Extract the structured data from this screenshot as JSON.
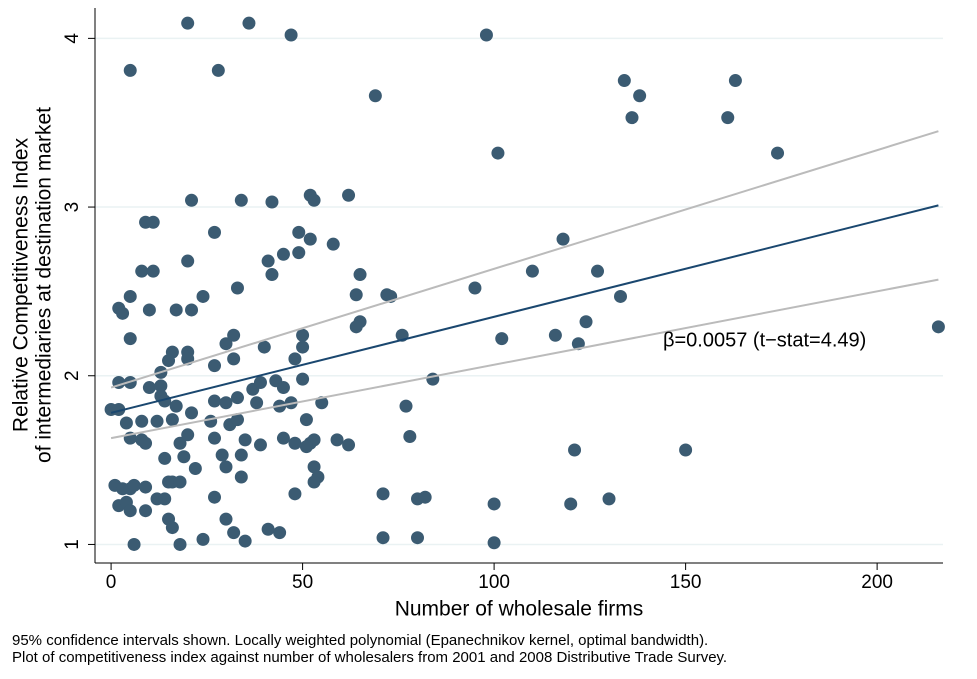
{
  "chart_data": {
    "type": "scatter",
    "xlabel": "Number of wholesale firms",
    "ylabel": [
      "Relative Competitiveness Index",
      "of intermediaries at destination market"
    ],
    "annotation": "β=0.0057 (t−stat=4.49)",
    "notes": [
      "95% confidence intervals shown. Locally weighted polynomial (Epanechnikov kernel, optimal bandwidth).",
      "Plot of competitiveness index against number of wholesalers from 2001 and 2008 Distributive Trade Survey."
    ],
    "xlim": [
      -4.2,
      217.2
    ],
    "ylim": [
      0.89,
      4.18
    ],
    "xticks": [
      0,
      50,
      100,
      150,
      200
    ],
    "yticks": [
      1,
      2,
      3,
      4
    ],
    "grid": true,
    "color": "#3b5b72",
    "x": [
      20,
      36,
      47,
      98,
      5,
      28,
      69,
      134,
      163,
      138,
      136,
      161,
      101,
      174,
      21,
      34,
      42,
      52,
      53,
      62,
      9,
      11,
      27,
      49,
      52,
      58,
      118,
      20,
      41,
      45,
      49,
      8,
      11,
      42,
      65,
      110,
      127,
      33,
      95,
      64,
      72,
      73,
      5,
      24,
      133,
      2,
      3,
      10,
      17,
      21,
      65,
      64,
      124,
      5,
      32,
      50,
      76,
      102,
      116,
      122,
      216,
      16,
      20,
      30,
      40,
      50,
      13,
      15,
      20,
      27,
      32,
      48,
      2,
      5,
      10,
      13,
      37,
      39,
      43,
      45,
      50,
      84,
      0,
      2,
      4,
      8,
      13,
      14,
      17,
      21,
      27,
      30,
      33,
      38,
      44,
      47,
      55,
      77,
      5,
      8,
      9,
      12,
      16,
      18,
      19,
      20,
      26,
      27,
      29,
      31,
      33,
      35,
      39,
      45,
      48,
      51,
      52,
      53,
      59,
      62,
      78,
      14,
      15,
      16,
      18,
      22,
      30,
      34,
      51,
      53,
      54,
      53,
      34,
      121,
      150,
      1,
      3,
      5,
      6,
      9,
      12,
      14,
      2,
      4,
      5,
      9,
      15,
      16,
      27,
      30,
      32,
      41,
      44,
      48,
      71,
      80,
      82,
      100,
      120,
      130,
      6,
      18,
      24,
      35,
      71,
      80,
      100
    ],
    "values": [
      4.09,
      4.09,
      4.02,
      4.02,
      3.81,
      3.81,
      3.66,
      3.75,
      3.75,
      3.66,
      3.53,
      3.53,
      3.32,
      3.32,
      3.04,
      3.04,
      3.03,
      3.07,
      3.04,
      3.07,
      2.91,
      2.91,
      2.85,
      2.85,
      2.81,
      2.78,
      2.81,
      2.68,
      2.68,
      2.72,
      2.73,
      2.62,
      2.62,
      2.6,
      2.6,
      2.62,
      2.62,
      2.52,
      2.52,
      2.48,
      2.48,
      2.47,
      2.47,
      2.47,
      2.47,
      2.4,
      2.37,
      2.39,
      2.39,
      2.39,
      2.32,
      2.29,
      2.32,
      2.22,
      2.24,
      2.24,
      2.24,
      2.22,
      2.24,
      2.19,
      2.29,
      2.14,
      2.14,
      2.19,
      2.17,
      2.17,
      2.02,
      2.09,
      2.1,
      2.06,
      2.1,
      2.1,
      1.96,
      1.96,
      1.93,
      1.94,
      1.92,
      1.96,
      1.97,
      1.93,
      1.98,
      1.98,
      1.8,
      1.8,
      1.72,
      1.73,
      1.88,
      1.85,
      1.82,
      1.78,
      1.85,
      1.84,
      1.87,
      1.84,
      1.82,
      1.84,
      1.84,
      1.82,
      1.63,
      1.62,
      1.6,
      1.73,
      1.74,
      1.6,
      1.52,
      1.65,
      1.73,
      1.63,
      1.53,
      1.71,
      1.74,
      1.62,
      1.59,
      1.63,
      1.6,
      1.74,
      1.6,
      1.62,
      1.62,
      1.59,
      1.64,
      1.51,
      1.37,
      1.37,
      1.37,
      1.45,
      1.46,
      1.53,
      1.58,
      1.46,
      1.4,
      1.37,
      1.4,
      1.56,
      1.56,
      1.35,
      1.33,
      1.33,
      1.35,
      1.34,
      1.27,
      1.27,
      1.23,
      1.25,
      1.2,
      1.2,
      1.15,
      1.1,
      1.28,
      1.15,
      1.07,
      1.09,
      1.07,
      1.3,
      1.3,
      1.27,
      1.28,
      1.24,
      1.24,
      1.27,
      1.0,
      1.0,
      1.03,
      1.02,
      1.04,
      1.04,
      1.01
    ],
    "fit_lines": [
      {
        "x": [
          0,
          216
        ],
        "values": [
          1.93,
          3.45
        ],
        "color": "#bbbbbb"
      },
      {
        "x": [
          0,
          216
        ],
        "values": [
          1.63,
          2.57
        ],
        "color": "#bbbbbb"
      },
      {
        "x": [
          0,
          216
        ],
        "values": [
          1.78,
          3.01
        ],
        "color": "#1a476f"
      }
    ]
  }
}
